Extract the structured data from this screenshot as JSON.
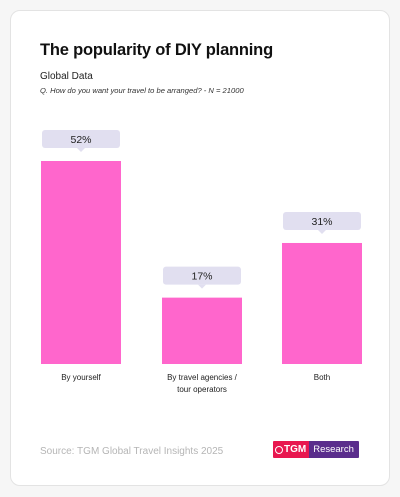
{
  "header": {
    "title": "The popularity of DIY planning",
    "subtitle": "Global Data",
    "question": "Q. How do you want your travel to be arranged? - N = 21000"
  },
  "footer": {
    "source": "Source: TGM Global Travel Insights 2025",
    "logo_left": "TGM",
    "logo_right": "Research"
  },
  "chart_data": {
    "type": "bar",
    "title": "The popularity of DIY planning",
    "categories": [
      [
        "By yourself"
      ],
      [
        "By travel agencies /",
        "tour operators"
      ],
      [
        "Both"
      ]
    ],
    "values": [
      52,
      17,
      31
    ],
    "value_labels": [
      "52%",
      "17%",
      "31%"
    ],
    "unit": "%",
    "ylim": [
      0,
      52
    ],
    "grid": false,
    "bar_color": "#ff66cc",
    "label_bg_color": "#e1dff0"
  }
}
